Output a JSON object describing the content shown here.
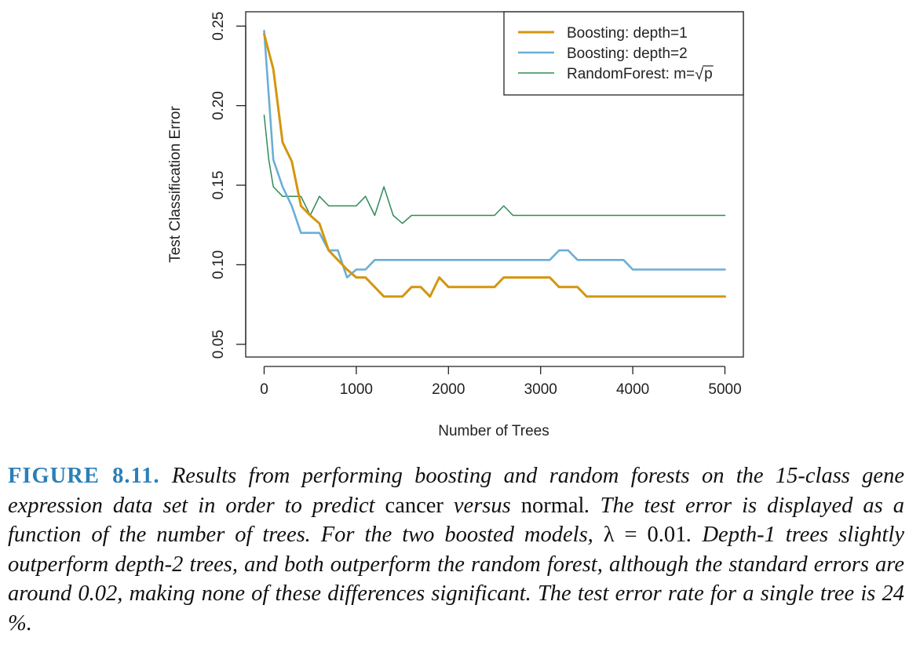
{
  "chart_data": {
    "type": "line",
    "xlabel": "Number of Trees",
    "ylabel": "Test Classification Error",
    "xlim": [
      -200,
      5200
    ],
    "ylim": [
      0.042,
      0.259
    ],
    "xticks": [
      0,
      1000,
      2000,
      3000,
      4000,
      5000
    ],
    "xtick_labels": [
      "0",
      "1000",
      "2000",
      "3000",
      "4000",
      "5000"
    ],
    "yticks": [
      0.05,
      0.1,
      0.15,
      0.2,
      0.25
    ],
    "ytick_labels": [
      "0.05",
      "0.10",
      "0.15",
      "0.20",
      "0.25"
    ],
    "grid": false,
    "legend_position": "top-right",
    "series": [
      {
        "name": "Boosting: depth=1",
        "color": "#D4960F",
        "x": [
          0,
          100,
          200,
          300,
          400,
          500,
          600,
          700,
          800,
          900,
          1000,
          1100,
          1200,
          1300,
          1400,
          1500,
          1600,
          1700,
          1800,
          1900,
          2000,
          2500,
          2600,
          3000,
          3100,
          3200,
          3300,
          3400,
          3500,
          4000,
          5000
        ],
        "values": [
          0.245,
          0.223,
          0.177,
          0.165,
          0.137,
          0.131,
          0.126,
          0.109,
          0.103,
          0.097,
          0.092,
          0.092,
          0.086,
          0.08,
          0.08,
          0.08,
          0.086,
          0.086,
          0.08,
          0.092,
          0.086,
          0.086,
          0.092,
          0.092,
          0.092,
          0.086,
          0.086,
          0.086,
          0.08,
          0.08,
          0.08
        ]
      },
      {
        "name": "Boosting: depth=2",
        "color": "#6AAED6",
        "x": [
          0,
          100,
          200,
          300,
          400,
          500,
          600,
          700,
          800,
          900,
          1000,
          1100,
          1200,
          1300,
          2000,
          3000,
          3100,
          3200,
          3300,
          3400,
          3900,
          4000,
          5000
        ],
        "values": [
          0.247,
          0.166,
          0.149,
          0.137,
          0.12,
          0.12,
          0.12,
          0.109,
          0.109,
          0.092,
          0.097,
          0.097,
          0.103,
          0.103,
          0.103,
          0.103,
          0.103,
          0.109,
          0.109,
          0.103,
          0.103,
          0.097,
          0.097
        ]
      },
      {
        "name": "RandomForest: m=",
        "name_sqrt_symbol": "√",
        "name_sqrt_arg": "p",
        "color": "#2E8B57",
        "x": [
          0,
          50,
          100,
          200,
          300,
          400,
          500,
          600,
          700,
          800,
          1000,
          1100,
          1200,
          1300,
          1400,
          1500,
          1600,
          2000,
          2500,
          2600,
          2700,
          3000,
          4000,
          5000
        ],
        "values": [
          0.194,
          0.166,
          0.149,
          0.143,
          0.143,
          0.143,
          0.131,
          0.143,
          0.137,
          0.137,
          0.137,
          0.143,
          0.131,
          0.149,
          0.131,
          0.126,
          0.131,
          0.131,
          0.131,
          0.137,
          0.131,
          0.131,
          0.131,
          0.131
        ]
      }
    ]
  },
  "caption": {
    "label": "FIGURE 8.11.",
    "text_1": " Results from performing boosting and random forests on the 15-class gene expression data set in order to predict ",
    "word_cancer": "cancer",
    "text_2": " versus ",
    "word_normal": "normal",
    "text_3": ". The test error is displayed as a function of the number of trees. For the two boosted models, ",
    "lambda_expr": "λ = 0.01",
    "text_4": ". Depth-1 trees slightly outperform depth-2 trees, and both outperform the random forest, although the standard errors are around 0.02, making none of these differences significant. The test error rate for a single tree is 24 %."
  }
}
